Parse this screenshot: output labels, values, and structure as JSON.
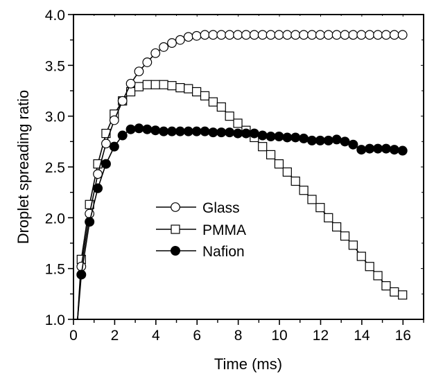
{
  "chart_data": {
    "type": "line",
    "title": "",
    "xlabel": "Time (ms)",
    "ylabel": "Droplet spreading ratio",
    "xlim": [
      0,
      17
    ],
    "ylim": [
      1.0,
      4.0
    ],
    "xticks": [
      0,
      2,
      4,
      6,
      8,
      10,
      12,
      14,
      16
    ],
    "xtick_labels": [
      "0",
      "2",
      "4",
      "6",
      "8",
      "10",
      "12",
      "14",
      "16"
    ],
    "yticks": [
      1.0,
      1.5,
      2.0,
      2.5,
      3.0,
      3.5,
      4.0
    ],
    "ytick_labels": [
      "1.0",
      "1.5",
      "2.0",
      "2.5",
      "3.0",
      "3.5",
      "4.0"
    ],
    "grid": false,
    "legend_position": "center-left",
    "line_start": {
      "x": 0.2,
      "y": 1.0
    },
    "x": [
      0.38,
      0.78,
      1.18,
      1.58,
      1.98,
      2.38,
      2.78,
      3.18,
      3.58,
      3.98,
      4.38,
      4.78,
      5.18,
      5.58,
      5.98,
      6.38,
      6.78,
      7.18,
      7.58,
      7.98,
      8.38,
      8.78,
      9.18,
      9.58,
      9.98,
      10.38,
      10.78,
      11.18,
      11.58,
      11.98,
      12.38,
      12.78,
      13.18,
      13.58,
      13.98,
      14.38,
      14.78,
      15.18,
      15.58,
      15.98
    ],
    "series": [
      {
        "name": "Glass",
        "marker": "open-circle",
        "values": [
          1.52,
          2.04,
          2.43,
          2.73,
          2.96,
          3.15,
          3.32,
          3.44,
          3.53,
          3.62,
          3.68,
          3.72,
          3.75,
          3.78,
          3.79,
          3.8,
          3.8,
          3.8,
          3.8,
          3.8,
          3.8,
          3.8,
          3.8,
          3.8,
          3.8,
          3.8,
          3.8,
          3.8,
          3.8,
          3.8,
          3.8,
          3.8,
          3.8,
          3.8,
          3.8,
          3.8,
          3.8,
          3.8,
          3.8,
          3.8
        ]
      },
      {
        "name": "PMMA",
        "marker": "open-square",
        "values": [
          1.59,
          2.13,
          2.53,
          2.83,
          3.02,
          3.15,
          3.24,
          3.29,
          3.31,
          3.31,
          3.31,
          3.3,
          3.28,
          3.27,
          3.24,
          3.2,
          3.14,
          3.09,
          3.0,
          2.93,
          2.86,
          2.79,
          2.7,
          2.62,
          2.53,
          2.45,
          2.36,
          2.27,
          2.18,
          2.1,
          2.0,
          1.91,
          1.82,
          1.73,
          1.62,
          1.52,
          1.43,
          1.33,
          1.27,
          1.24
        ]
      },
      {
        "name": "Nafion",
        "marker": "filled-circle",
        "values": [
          1.44,
          1.96,
          2.29,
          2.53,
          2.7,
          2.81,
          2.87,
          2.88,
          2.87,
          2.86,
          2.85,
          2.85,
          2.85,
          2.85,
          2.85,
          2.85,
          2.84,
          2.84,
          2.84,
          2.83,
          2.83,
          2.83,
          2.81,
          2.8,
          2.8,
          2.79,
          2.79,
          2.78,
          2.76,
          2.76,
          2.76,
          2.77,
          2.75,
          2.72,
          2.67,
          2.68,
          2.68,
          2.68,
          2.67,
          2.66
        ]
      }
    ]
  }
}
